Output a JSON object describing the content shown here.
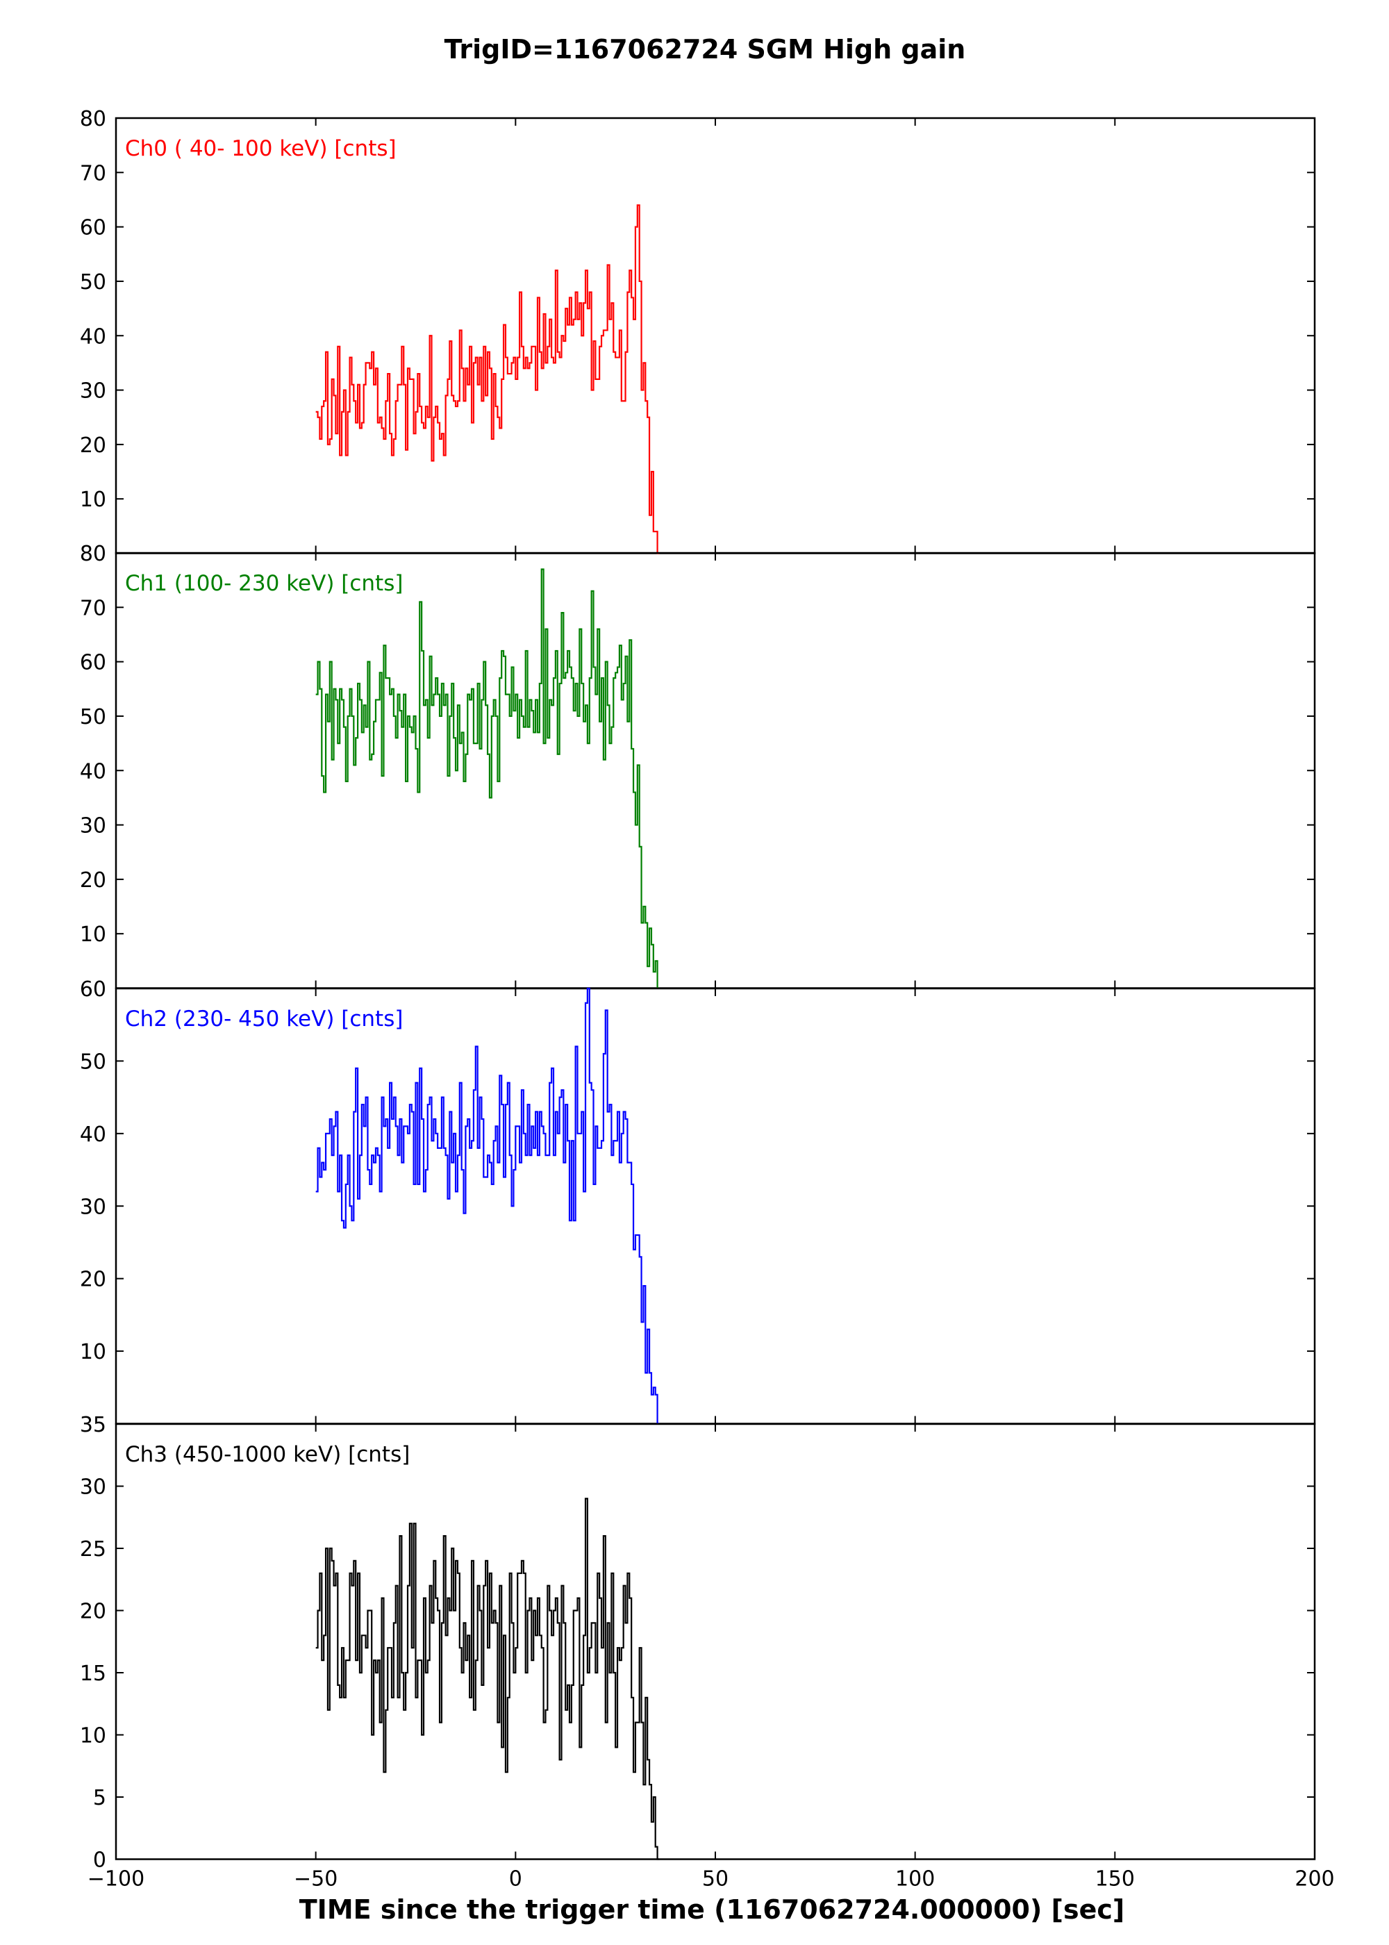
{
  "chart_data": {
    "type": "line",
    "title": "TrigID=1167062724 SGM High gain",
    "xlabel": "TIME since the trigger time (1167062724.000000) [sec]",
    "xlim": [
      -100,
      200
    ],
    "xticks": [
      -100,
      -50,
      0,
      50,
      100,
      150,
      200
    ],
    "xtick_labels": [
      "−100",
      "−50",
      "0",
      "50",
      "100",
      "150",
      "200"
    ],
    "bin_sec": 0.5,
    "data_x_range": [
      -50,
      36
    ],
    "grid": false,
    "panels": [
      {
        "label": "Ch0 ( 40- 100 keV) [cnts]",
        "color": "#ff0000",
        "ylim": [
          0,
          80
        ],
        "yticks": [
          10,
          20,
          30,
          40,
          50,
          60,
          70,
          80
        ],
        "profile": [
          [
            -50,
            28
          ],
          [
            -35,
            28
          ],
          [
            -20,
            29
          ],
          [
            -10,
            31
          ],
          [
            0,
            35
          ],
          [
            8,
            40
          ],
          [
            15,
            44
          ],
          [
            22,
            40
          ],
          [
            28,
            38
          ],
          [
            30,
            52
          ],
          [
            31,
            62
          ],
          [
            32,
            30
          ],
          [
            33,
            22
          ],
          [
            34,
            14
          ],
          [
            35,
            6
          ],
          [
            36,
            0
          ]
        ],
        "noise": 5.5
      },
      {
        "label": "Ch1 (100- 230 keV) [cnts]",
        "color": "#008000",
        "ylim": [
          0,
          80
        ],
        "yticks": [
          10,
          20,
          30,
          40,
          50,
          60,
          70,
          80
        ],
        "profile": [
          [
            -50,
            51
          ],
          [
            -20,
            52
          ],
          [
            0,
            53
          ],
          [
            15,
            56
          ],
          [
            25,
            56
          ],
          [
            29,
            55
          ],
          [
            30,
            45
          ],
          [
            31,
            30
          ],
          [
            32,
            18
          ],
          [
            33,
            12
          ],
          [
            34,
            8
          ],
          [
            35,
            4
          ],
          [
            36,
            0
          ]
        ],
        "noise": 7
      },
      {
        "label": "Ch2 (230- 450 keV) [cnts]",
        "color": "#0000ff",
        "ylim": [
          0,
          60
        ],
        "yticks": [
          10,
          20,
          30,
          40,
          50,
          60
        ],
        "profile": [
          [
            -50,
            38
          ],
          [
            -20,
            39
          ],
          [
            0,
            39
          ],
          [
            20,
            39
          ],
          [
            29,
            39
          ],
          [
            30,
            32
          ],
          [
            31,
            22
          ],
          [
            32,
            14
          ],
          [
            33,
            10
          ],
          [
            34,
            7
          ],
          [
            35,
            4
          ],
          [
            36,
            0
          ]
        ],
        "noise": 6
      },
      {
        "label": "Ch3 (450-1000 keV) [cnts]",
        "color": "#000000",
        "ylim": [
          0,
          35
        ],
        "yticks": [
          0,
          5,
          10,
          15,
          20,
          25,
          30,
          35
        ],
        "profile": [
          [
            -50,
            18
          ],
          [
            -20,
            18
          ],
          [
            0,
            18
          ],
          [
            20,
            19
          ],
          [
            29,
            18
          ],
          [
            30,
            13
          ],
          [
            31,
            11
          ],
          [
            32,
            8
          ],
          [
            33,
            6
          ],
          [
            34,
            4
          ],
          [
            35,
            2
          ],
          [
            36,
            0
          ]
        ],
        "noise": 4.2
      }
    ]
  }
}
